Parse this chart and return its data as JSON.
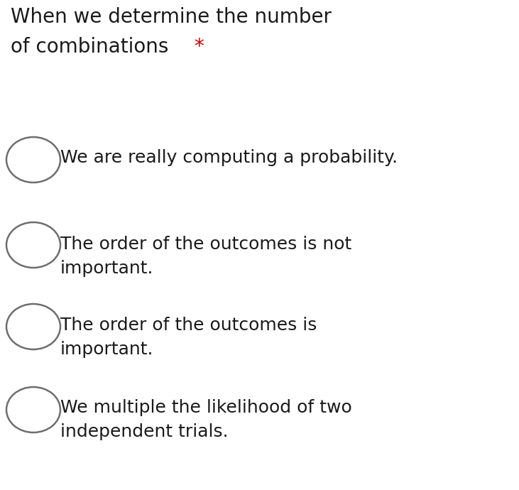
{
  "background_color": "#ffffff",
  "title_line1": "When we determine the number",
  "title_line2": "of combinations ",
  "title_asterisk": "*",
  "title_color": "#1a1a1a",
  "asterisk_color": "#cc0000",
  "title_fontsize": 20,
  "options": [
    "We are really computing a probability.",
    "The order of the outcomes is not\nimportant.",
    "The order of the outcomes is\nimportant.",
    "We multiple the likelihood of two\nindependent trials."
  ],
  "option_fontsize": 18,
  "option_color": "#1a1a1a",
  "circle_color": "#6e6e6e",
  "fig_width": 7.31,
  "fig_height": 6.9,
  "dpi": 100
}
